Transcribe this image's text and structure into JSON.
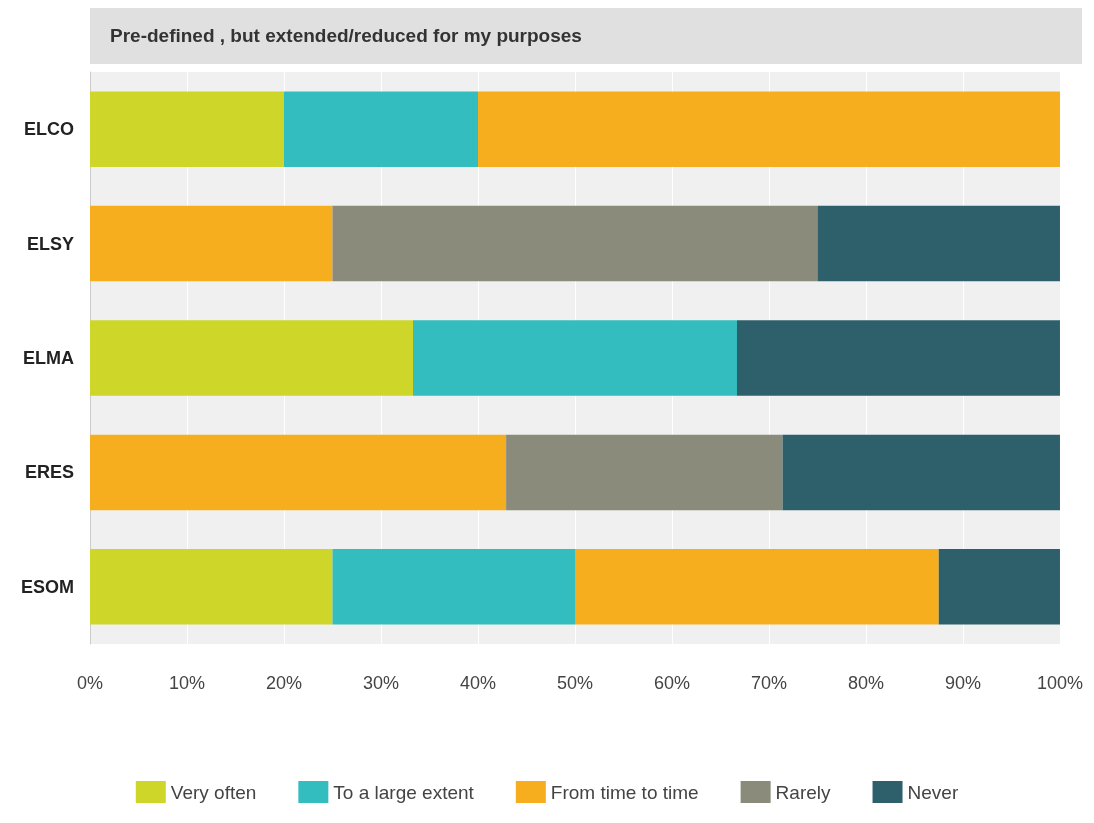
{
  "chart_data": {
    "type": "bar",
    "title": "Pre-defined , but extended/reduced for my purposes",
    "orientation": "horizontal",
    "stacked": true,
    "categories": [
      "ELCO",
      "ELSY",
      "ELMA",
      "ERES",
      "ESOM"
    ],
    "series": [
      {
        "name": "Very often",
        "color": "#ced62a",
        "values": [
          20,
          0,
          33.3,
          0,
          25
        ]
      },
      {
        "name": "To a large extent",
        "color": "#33bdbf",
        "values": [
          20,
          0,
          33.4,
          0,
          25
        ]
      },
      {
        "name": "From time to time",
        "color": "#f6ae1f",
        "values": [
          60,
          25,
          0,
          42.9,
          37.5
        ]
      },
      {
        "name": "Rarely",
        "color": "#8a8b7a",
        "values": [
          0,
          50,
          0,
          28.5,
          0
        ]
      },
      {
        "name": "Never",
        "color": "#2e606c",
        "values": [
          0,
          25,
          33.3,
          28.6,
          12.5
        ]
      }
    ],
    "xlim": [
      0,
      100
    ],
    "xticks": [
      {
        "value": 0,
        "label": "0%"
      },
      {
        "value": 10,
        "label": "10%"
      },
      {
        "value": 20,
        "label": "20%"
      },
      {
        "value": 30,
        "label": "30%"
      },
      {
        "value": 40,
        "label": "40%"
      },
      {
        "value": 50,
        "label": "50%"
      },
      {
        "value": 60,
        "label": "60%"
      },
      {
        "value": 70,
        "label": "70%"
      },
      {
        "value": 80,
        "label": "80%"
      },
      {
        "value": 90,
        "label": "90%"
      },
      {
        "value": 100,
        "label": "100%"
      }
    ],
    "grid": "x",
    "legend": "bottom"
  }
}
